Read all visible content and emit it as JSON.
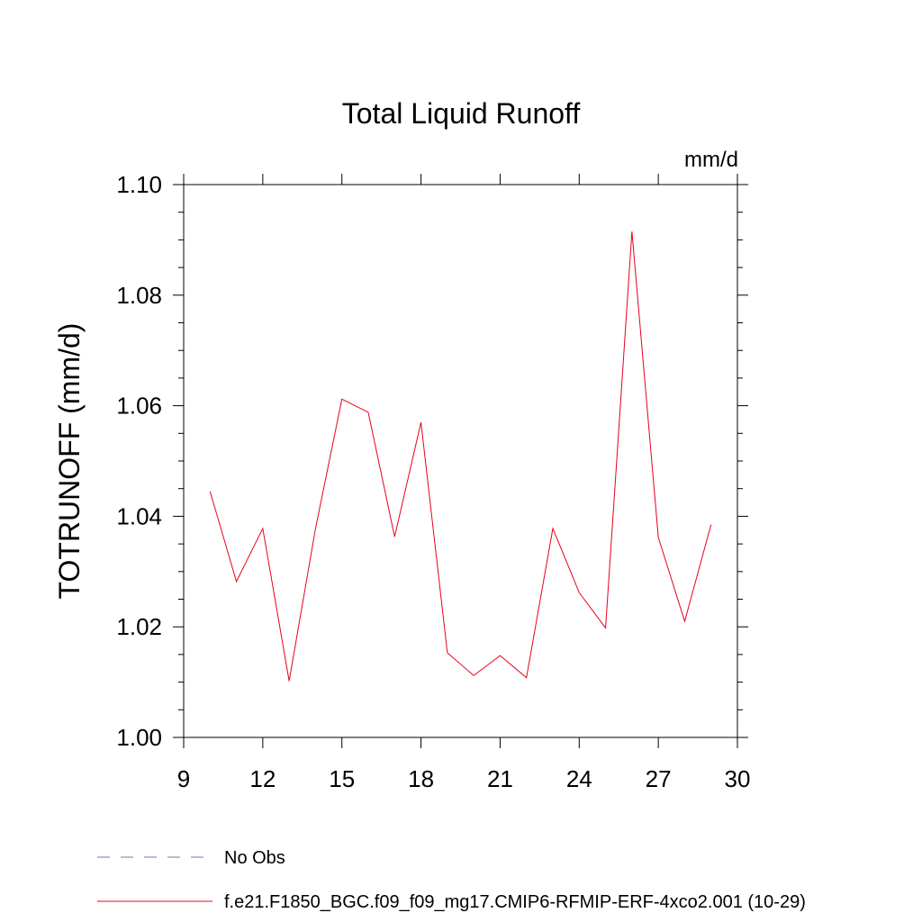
{
  "chart_data": {
    "type": "line",
    "title": "Total Liquid Runoff",
    "units_label": "mm/d",
    "ylabel": "TOTRUNOFF  (mm/d)",
    "xlabel": "",
    "xlim": [
      9,
      30
    ],
    "ylim": [
      1.0,
      1.1
    ],
    "x_ticks": [
      9,
      12,
      15,
      18,
      21,
      24,
      27,
      30
    ],
    "y_ticks": [
      1.0,
      1.02,
      1.04,
      1.06,
      1.08,
      1.1
    ],
    "x_tick_labels": [
      "9",
      "12",
      "15",
      "18",
      "21",
      "24",
      "27",
      "30"
    ],
    "y_tick_labels": [
      "1.00",
      "1.02",
      "1.04",
      "1.06",
      "1.08",
      "1.10"
    ],
    "grid": false,
    "legend_position": "bottom",
    "series": [
      {
        "name": "f.e21.F1850_BGC.f09_f09_mg17.CMIP6-RFMIP-ERF-4xco2.001 (10-29)",
        "color": "#e8001c",
        "style": "solid",
        "x": [
          10,
          11,
          12,
          13,
          14,
          15,
          16,
          17,
          18,
          19,
          20,
          21,
          22,
          23,
          24,
          25,
          26,
          27,
          28,
          29
        ],
        "y": [
          1.0445,
          1.0282,
          1.0378,
          1.0102,
          1.0378,
          1.0612,
          1.0588,
          1.0363,
          1.057,
          1.0153,
          1.0112,
          1.0148,
          1.0108,
          1.0378,
          1.0262,
          1.0198,
          1.0915,
          1.0362,
          1.021,
          1.0385
        ]
      }
    ],
    "legend": [
      {
        "label": "No Obs",
        "color": "#7a70b0",
        "style": "dashed"
      },
      {
        "label": "f.e21.F1850_BGC.f09_f09_mg17.CMIP6-RFMIP-ERF-4xco2.001 (10-29)",
        "color": "#e8001c",
        "style": "solid"
      }
    ]
  }
}
